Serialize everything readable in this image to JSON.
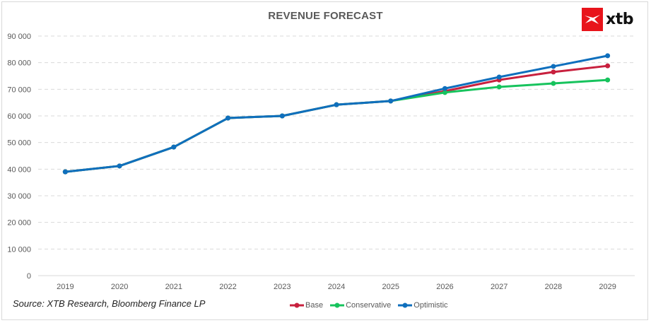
{
  "logo": {
    "text": "xtb",
    "brand_color": "#e8141b"
  },
  "source_note": "Source: XTB Research, Bloomberg Finance LP",
  "chart_data": {
    "type": "line",
    "title": "REVENUE FORECAST",
    "xlabel": "",
    "ylabel": "",
    "x": [
      "2019",
      "2020",
      "2021",
      "2022",
      "2023",
      "2024",
      "2025",
      "2026",
      "2027",
      "2028",
      "2029"
    ],
    "ylim": [
      0,
      90000
    ],
    "yticks": [
      0,
      10000,
      20000,
      30000,
      40000,
      50000,
      60000,
      70000,
      80000,
      90000
    ],
    "ytick_labels": [
      "0",
      "10 000",
      "20 000",
      "30 000",
      "40 000",
      "50 000",
      "60 000",
      "70 000",
      "80 000",
      "90 000"
    ],
    "grid": true,
    "legend_position": "bottom",
    "series": [
      {
        "name": "Base",
        "color": "#c8203e",
        "values": [
          39000,
          41200,
          48300,
          59200,
          60000,
          64200,
          65600,
          69300,
          73500,
          76500,
          78800
        ]
      },
      {
        "name": "Conservative",
        "color": "#17c35d",
        "values": [
          39000,
          41200,
          48300,
          59200,
          60000,
          64200,
          65600,
          68800,
          70900,
          72200,
          73500
        ]
      },
      {
        "name": "Optimistic",
        "color": "#0f6fbd",
        "values": [
          39000,
          41200,
          48300,
          59200,
          60000,
          64200,
          65600,
          70300,
          74600,
          78600,
          82600
        ]
      }
    ]
  }
}
